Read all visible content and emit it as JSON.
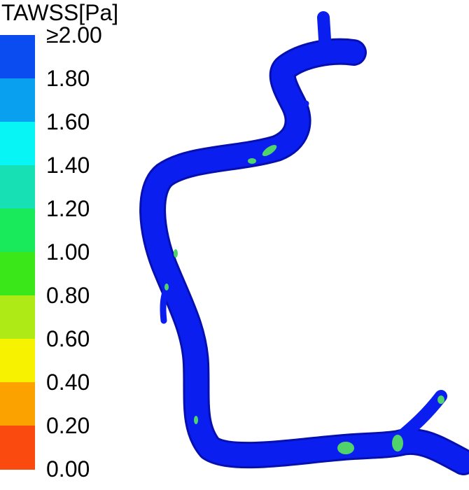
{
  "legend": {
    "title": "TAWSS[Pa]",
    "ticks": [
      "≥2.00",
      "1.80",
      "1.60",
      "1.40",
      "1.20",
      "1.00",
      "0.80",
      "0.60",
      "0.40",
      "0.20",
      "0.00"
    ],
    "colors": [
      "#0a4cf0",
      "#0aa0f0",
      "#08f5f5",
      "#16e0b4",
      "#18ea5c",
      "#3ae81a",
      "#aeea16",
      "#f6f200",
      "#fba200",
      "#fa4a10"
    ]
  },
  "colors": {
    "vessel": "#0a1ef0",
    "vessel_dark": "#0610b0",
    "low_wss_spot": "#4fd36a"
  }
}
